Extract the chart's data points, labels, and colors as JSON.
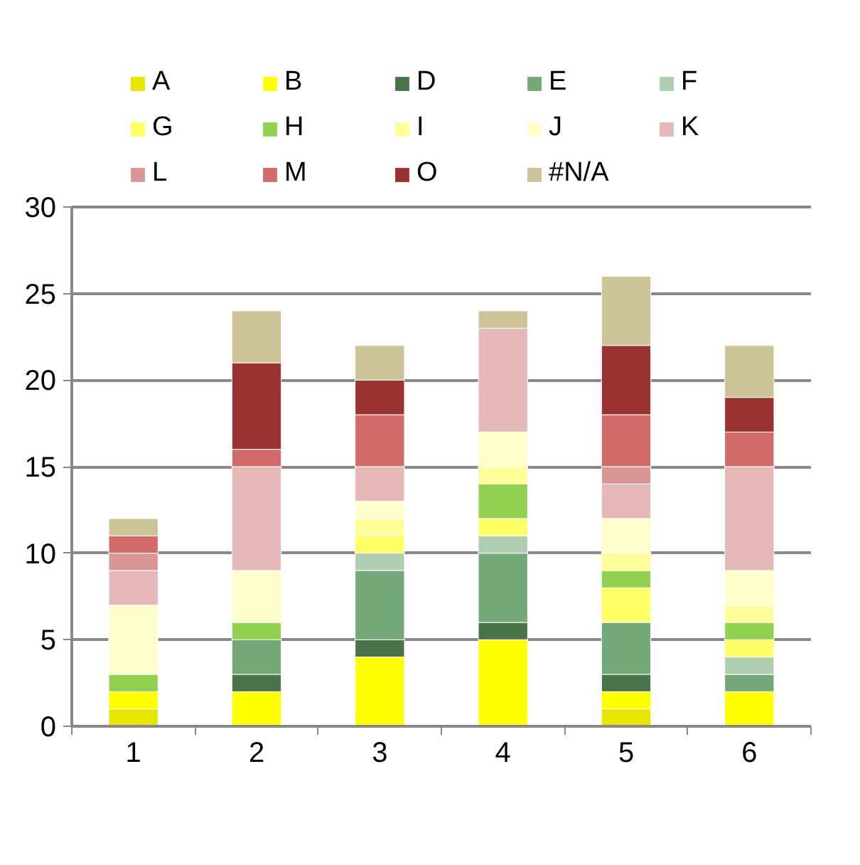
{
  "chart_data": {
    "type": "bar",
    "stacked": true,
    "categories": [
      "1",
      "2",
      "3",
      "4",
      "5",
      "6"
    ],
    "series": [
      {
        "name": "A",
        "color": "#e6e600",
        "values": [
          1,
          null,
          null,
          null,
          1,
          null
        ]
      },
      {
        "name": "B",
        "color": "#ffff00",
        "values": [
          1,
          2,
          4,
          5,
          1,
          2
        ]
      },
      {
        "name": "D",
        "color": "#4a7349",
        "values": [
          null,
          1,
          1,
          1,
          1,
          null
        ]
      },
      {
        "name": "E",
        "color": "#75a878",
        "values": [
          null,
          2,
          4,
          4,
          3,
          1
        ]
      },
      {
        "name": "F",
        "color": "#afcdb0",
        "values": [
          null,
          null,
          1,
          1,
          null,
          1
        ]
      },
      {
        "name": "G",
        "color": "#ffff66",
        "values": [
          null,
          null,
          1,
          1,
          2,
          1
        ]
      },
      {
        "name": "H",
        "color": "#92d050",
        "values": [
          1,
          1,
          null,
          2,
          1,
          1
        ]
      },
      {
        "name": "I",
        "color": "#ffff99",
        "values": [
          null,
          null,
          1,
          1,
          1,
          1
        ]
      },
      {
        "name": "J",
        "color": "#ffffcc",
        "values": [
          4,
          3,
          1,
          2,
          2,
          2
        ]
      },
      {
        "name": "K",
        "color": "#e6b8b7",
        "values": [
          2,
          6,
          2,
          6,
          2,
          6
        ]
      },
      {
        "name": "L",
        "color": "#da9694",
        "values": [
          1,
          null,
          null,
          null,
          1,
          null
        ]
      },
      {
        "name": "M",
        "color": "#d16b69",
        "values": [
          1,
          1,
          3,
          null,
          3,
          2
        ]
      },
      {
        "name": "O",
        "color": "#9b3232",
        "values": [
          null,
          5,
          2,
          null,
          4,
          2
        ]
      },
      {
        "name": "#N/A",
        "color": "#ccc496",
        "values": [
          1,
          3,
          2,
          1,
          4,
          3
        ]
      }
    ],
    "ylim": [
      0,
      30
    ],
    "yticks": [
      0,
      5,
      10,
      15,
      20,
      25,
      30
    ],
    "grid": "y",
    "legend": "top"
  }
}
